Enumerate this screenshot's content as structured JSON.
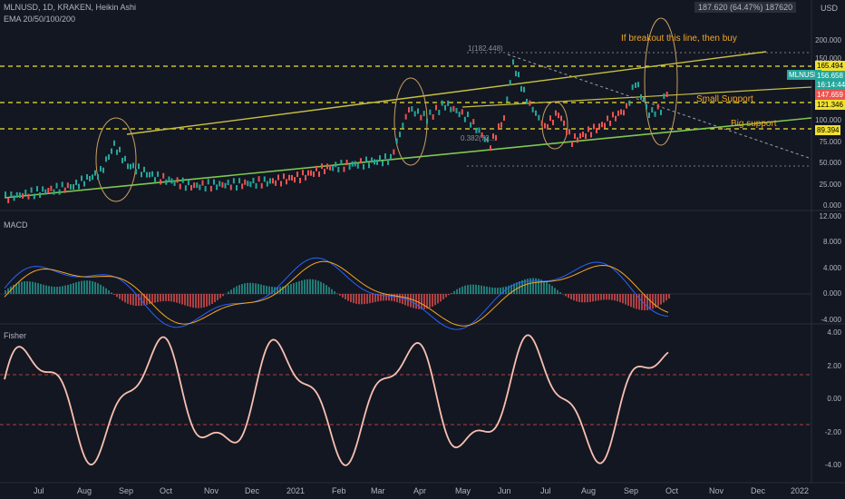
{
  "header": {
    "symbol_line": "MLNUSD, 1D, KRAKEN, Heikin Ashi",
    "ema_line": "EMA 20/50/100/200",
    "currency": "USD",
    "top_readout": "187.620 (64.47%) 187620"
  },
  "price_axis": {
    "labels": [
      "200.000",
      "150.000",
      "100.000",
      "75.000",
      "50.000",
      "25.000",
      "0.000"
    ],
    "tags": {
      "level1": "165.494",
      "ticker": "MLNUSD",
      "last": "156.658",
      "countdown": "16:14:44",
      "level2": "147.659",
      "level3": "121.346",
      "level4": "89.394"
    }
  },
  "macd": {
    "title": "MACD",
    "labels": [
      "12.000",
      "8.000",
      "4.000",
      "0.000",
      "-4.000"
    ]
  },
  "fisher": {
    "title": "Fisher",
    "labels": [
      "4.00",
      "2.00",
      "0.00",
      "-2.00",
      "-4.00"
    ]
  },
  "fib": {
    "top": "1(182.448)",
    "mid": "0.382(72..."
  },
  "annotations": {
    "breakout": "If breakout this line, then buy",
    "small": "Small Support",
    "big": "Big support"
  },
  "time_axis": {
    "labels": [
      "Jul",
      "Aug",
      "Sep",
      "Oct",
      "Nov",
      "Dec",
      "2021",
      "Feb",
      "Mar",
      "Apr",
      "May",
      "Jun",
      "Jul",
      "Aug",
      "Sep",
      "Oct",
      "Nov",
      "Dec",
      "2022"
    ]
  },
  "colors": {
    "bg": "#131722",
    "up": "#26a69a",
    "down": "#ef5350",
    "yellow_line": "#f0e130",
    "trend_yellow": "#c8c040",
    "trend_green": "#7ec850",
    "fisher": "#f8c0b0",
    "orange": "#f5a623"
  }
}
